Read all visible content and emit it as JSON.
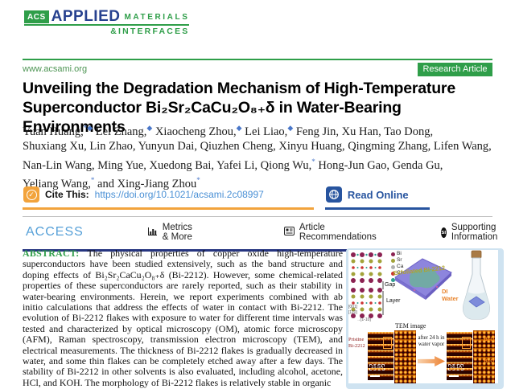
{
  "header": {
    "logo_acs": "ACS",
    "logo_applied": "APPLIED",
    "logo_materials": "MATERIALS",
    "logo_interfaces": "&INTERFACES",
    "site_url": "www.acsami.org",
    "badge": "Research Article"
  },
  "title": {
    "line1": "Unveiling the Degradation Mechanism of High-Temperature",
    "line2": "Superconductor Bi₂Sr₂CaCu₂O₈₊δ in Water-Bearing Environments"
  },
  "authors": {
    "lines": [
      [
        {
          "t": "Yuan Huang,",
          "m": "*◆"
        },
        {
          "t": " Lei Zhang,",
          "m": "◆"
        },
        {
          "t": " Xiaocheng Zhou,",
          "m": "◆"
        },
        {
          "t": " Lei Liao,",
          "m": "◆"
        },
        {
          "t": " Feng Jin, Xu Han, Tao Dong,",
          "m": ""
        }
      ],
      [
        {
          "t": "Shuxiang Xu, Lin Zhao, Yunyun Dai, Qiuzhen Cheng, Xinyu Huang, Qingming Zhang, Lifen Wang,",
          "m": ""
        }
      ],
      [
        {
          "t": "Nan-Lin Wang, Ming Yue, Xuedong Bai, Yafei Li, Qiong Wu,",
          "m": "*"
        },
        {
          "t": " Hong-Jun Gao, Genda Gu,",
          "m": ""
        }
      ],
      [
        {
          "t": "Yeliang Wang,",
          "m": "*"
        },
        {
          "t": " and Xing-Jiang Zhou",
          "m": "*"
        }
      ]
    ]
  },
  "cite_bar": {
    "cite_label": "Cite This:",
    "doi": "https://doi.org/10.1021/acsami.2c08997",
    "read_online": "Read Online",
    "check_glyph": "✓"
  },
  "access_bar": {
    "access": "ACCESS",
    "metrics": "Metrics & More",
    "recommendations": "Article Recommendations",
    "supporting": "Supporting Information",
    "si_icon_text": "sı"
  },
  "abstract": {
    "label": "ABSTRACT:",
    "text": " The physical properties of copper oxide high-temperature superconductors have been studied extensively, such as the band structure and doping effects of Bi₂Sr₂CaCu₂O₈₊δ (Bi-2212). However, some chemical-related properties of these superconductors are rarely reported, such as their stability in water-bearing environments. Herein, we report experiments combined with ab initio calculations that address the effects of water in contact with Bi-2212. The evolution of Bi-2212 flakes with exposure to water for different time intervals was tested and characterized by optical microscopy (OM), atomic force microscopy (AFM), Raman spectroscopy, transmission electron microscopy (TEM), and electrical measurements. The thickness of Bi-2212 flakes is gradually decreased in water, and some thin flakes can be completely etched away after a few days. The stability of Bi-2212 in other solvents is also evaluated, including alcohol, acetone, HCl, and KOH. The morphology of Bi-2212 flakes is relatively stable in organic"
  },
  "figure": {
    "legend": [
      {
        "label": "Bi",
        "color": "#8b2252"
      },
      {
        "label": "Sr",
        "color": "#a3a33a"
      },
      {
        "label": "Ca",
        "color": "#b0b0b0"
      },
      {
        "label": "Cu",
        "color": "#cc3333"
      },
      {
        "label": "O",
        "color": "#2f9e8f"
      }
    ],
    "gap_label": "Gap",
    "layer_label": "Layer",
    "axis_c": "[001]",
    "axis_b": "[110]",
    "axis_a": "→[1-10]",
    "flake_label": "Exfoliated Bi-2212",
    "di_water": "DI Water",
    "tem_caption": "TEM image",
    "pristine_label": "Pristine Bi-2212",
    "scale_before": "15.5Å",
    "scale_after": "16.1Å",
    "arrow_text": "after 24 h in water vapor",
    "bio_label": "Bi-O"
  },
  "colors": {
    "brand_green": "#2f9e49",
    "logo_blue": "#27418f",
    "link_blue": "#4a90d5",
    "navy_rule": "#263580",
    "cite_orange": "#f2a33c",
    "access_blue": "#56a0d8",
    "figure_frame": "#cfe3f1"
  }
}
